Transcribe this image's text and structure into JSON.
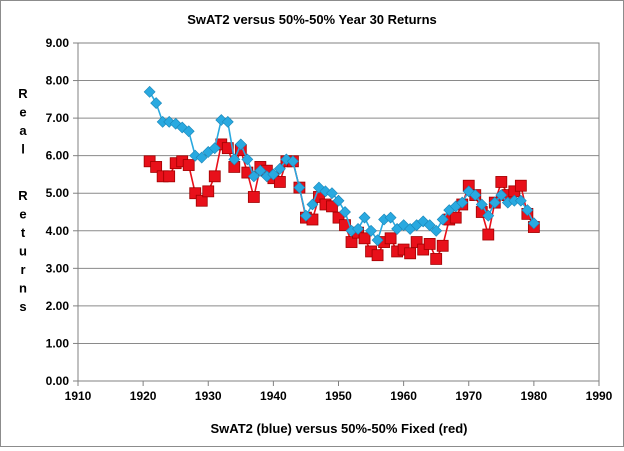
{
  "chart_data": {
    "type": "line",
    "title": "SwAT2 versus 50%-50% Year 30 Returns",
    "xlabel": "SwAT2 (blue) versus 50%-50% Fixed (red)",
    "ylabel": "Real Returns",
    "xlim": [
      1910,
      1990
    ],
    "ylim": [
      0,
      9
    ],
    "xticks": [
      "1910",
      "1920",
      "1930",
      "1940",
      "1950",
      "1960",
      "1970",
      "1980",
      "1990"
    ],
    "yticks": [
      "0.00",
      "1.00",
      "2.00",
      "3.00",
      "4.00",
      "5.00",
      "6.00",
      "7.00",
      "8.00",
      "9.00"
    ],
    "grid": "horizontal",
    "legend": "none",
    "x": [
      1921,
      1922,
      1923,
      1924,
      1925,
      1926,
      1927,
      1928,
      1929,
      1930,
      1931,
      1932,
      1933,
      1934,
      1935,
      1936,
      1937,
      1938,
      1939,
      1940,
      1941,
      1942,
      1943,
      1944,
      1945,
      1946,
      1947,
      1948,
      1949,
      1950,
      1951,
      1952,
      1953,
      1954,
      1955,
      1956,
      1957,
      1958,
      1959,
      1960,
      1961,
      1962,
      1963,
      1964,
      1965,
      1966,
      1967,
      1968,
      1969,
      1970,
      1971,
      1972,
      1973,
      1974,
      1975,
      1976,
      1977,
      1978,
      1979,
      1980
    ],
    "series": [
      {
        "color": "#29a9e0",
        "marker": "diamond",
        "values": [
          7.7,
          7.4,
          6.9,
          6.9,
          6.85,
          6.75,
          6.65,
          6.0,
          5.95,
          6.1,
          6.2,
          6.95,
          6.9,
          5.9,
          6.3,
          5.9,
          5.45,
          5.6,
          5.45,
          5.5,
          5.65,
          5.9,
          5.85,
          5.15,
          4.4,
          4.7,
          5.15,
          5.05,
          5.0,
          4.8,
          4.5,
          4.0,
          4.05,
          4.35,
          4.0,
          3.75,
          4.3,
          4.35,
          4.05,
          4.15,
          4.05,
          4.15,
          4.25,
          4.15,
          4.0,
          4.3,
          4.55,
          4.65,
          4.75,
          5.05,
          4.95,
          4.7,
          4.4,
          4.75,
          4.95,
          4.75,
          4.8,
          4.8,
          4.55,
          4.2
        ]
      },
      {
        "color": "#e8101a",
        "marker": "square",
        "values": [
          5.85,
          5.7,
          5.45,
          5.45,
          5.8,
          5.85,
          5.75,
          5.0,
          4.8,
          5.05,
          5.45,
          6.3,
          6.2,
          5.7,
          6.15,
          5.55,
          4.9,
          5.7,
          5.6,
          5.4,
          5.3,
          5.85,
          5.85,
          5.15,
          4.35,
          4.3,
          4.9,
          4.7,
          4.65,
          4.35,
          4.15,
          3.7,
          3.95,
          3.8,
          3.45,
          3.35,
          3.7,
          3.8,
          3.45,
          3.5,
          3.4,
          3.7,
          3.5,
          3.65,
          3.25,
          3.6,
          4.3,
          4.35,
          4.7,
          5.2,
          4.95,
          4.5,
          3.9,
          4.75,
          5.3,
          4.95,
          5.05,
          5.2,
          4.45,
          4.1
        ]
      }
    ]
  }
}
